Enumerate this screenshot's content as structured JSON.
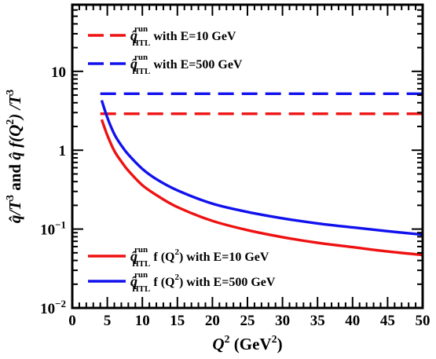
{
  "chart_data": {
    "type": "line",
    "xlabel": {
      "main": "Q",
      "sup": "2",
      "unit": " (GeV",
      "unit_sup": "2",
      "close": ")"
    },
    "ylabel": {
      "qhat": "q̂",
      "part1": "/T",
      "sup1": "3",
      "part2": " and ",
      "qhat2": "q̂",
      "part3": " f(Q",
      "sup2": "2",
      "part4": ") /T",
      "sup3": "3"
    },
    "xlim": [
      0,
      50
    ],
    "ylim": [
      0.01,
      70
    ],
    "yscale": "log",
    "x_ticks": [
      "0",
      "5",
      "10",
      "15",
      "20",
      "25",
      "30",
      "35",
      "40",
      "45",
      "50"
    ],
    "y_ticks": [
      {
        "value": 10,
        "label": "10"
      },
      {
        "value": 1,
        "label": "1"
      },
      {
        "value": 0.1,
        "base": "10",
        "exp": "−1"
      },
      {
        "value": 0.01,
        "base": "10",
        "exp": "−2"
      }
    ],
    "grid": false,
    "legend_top": [
      {
        "color": "#ee1111",
        "dash": true,
        "sym": "q̂",
        "sup": "run",
        "sub": "HTL",
        "text": " with  E=10 GeV"
      },
      {
        "color": "#1111ee",
        "dash": true,
        "sym": "q̂",
        "sup": "run",
        "sub": "HTL",
        "text": " with  E=500 GeV"
      }
    ],
    "legend_bottom": [
      {
        "color": "#ee1111",
        "dash": false,
        "sym": "q̂",
        "sup": "run",
        "sub": "HTL",
        "text": " f (Q",
        "text_sup": "2",
        "text2": ") with  E=10 GeV"
      },
      {
        "color": "#1111ee",
        "dash": false,
        "sym": "q̂",
        "sup": "run",
        "sub": "HTL",
        "text": " f (Q",
        "text_sup": "2",
        "text2": ") with  E=500 GeV"
      }
    ],
    "series": [
      {
        "color": "#ee1111",
        "dash": true,
        "x": [
          4,
          50
        ],
        "y": [
          2.9,
          2.9
        ]
      },
      {
        "color": "#1111ee",
        "dash": true,
        "x": [
          4,
          50
        ],
        "y": [
          5.2,
          5.2
        ]
      },
      {
        "color": "#ee1111",
        "dash": false,
        "x": [
          4.2,
          5,
          6,
          7,
          8,
          10,
          12,
          15,
          20,
          25,
          30,
          35,
          40,
          45,
          50
        ],
        "y": [
          2.45,
          1.55,
          0.98,
          0.72,
          0.55,
          0.36,
          0.27,
          0.19,
          0.127,
          0.097,
          0.079,
          0.067,
          0.059,
          0.052,
          0.047
        ]
      },
      {
        "color": "#1111ee",
        "dash": false,
        "x": [
          4.2,
          5,
          6,
          7,
          8,
          10,
          12,
          15,
          20,
          25,
          30,
          35,
          40,
          45,
          50
        ],
        "y": [
          4.3,
          2.6,
          1.6,
          1.15,
          0.88,
          0.58,
          0.43,
          0.31,
          0.21,
          0.165,
          0.137,
          0.118,
          0.105,
          0.094,
          0.085
        ]
      }
    ]
  }
}
